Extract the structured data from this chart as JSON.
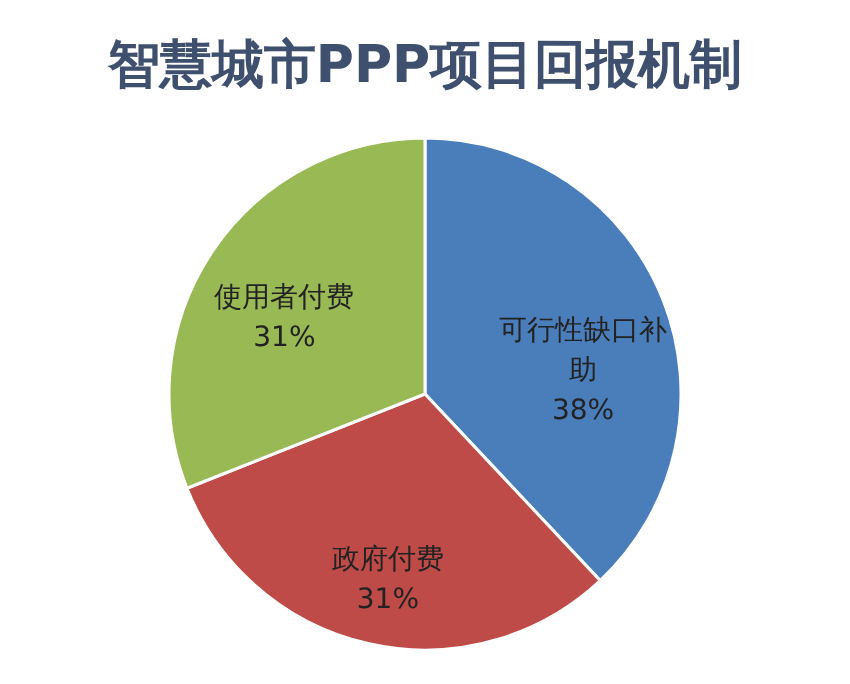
{
  "chart_data": {
    "type": "pie",
    "title": "智慧城市PPP项目回报机制",
    "categories": [
      "可行性缺口补助",
      "政府付费",
      "使用者付费"
    ],
    "values": [
      38,
      31,
      31
    ],
    "colors": [
      "#4a7ebb",
      "#be4b48",
      "#98b954"
    ],
    "value_labels": [
      "38%",
      "31%",
      "31%"
    ],
    "legend": false
  }
}
